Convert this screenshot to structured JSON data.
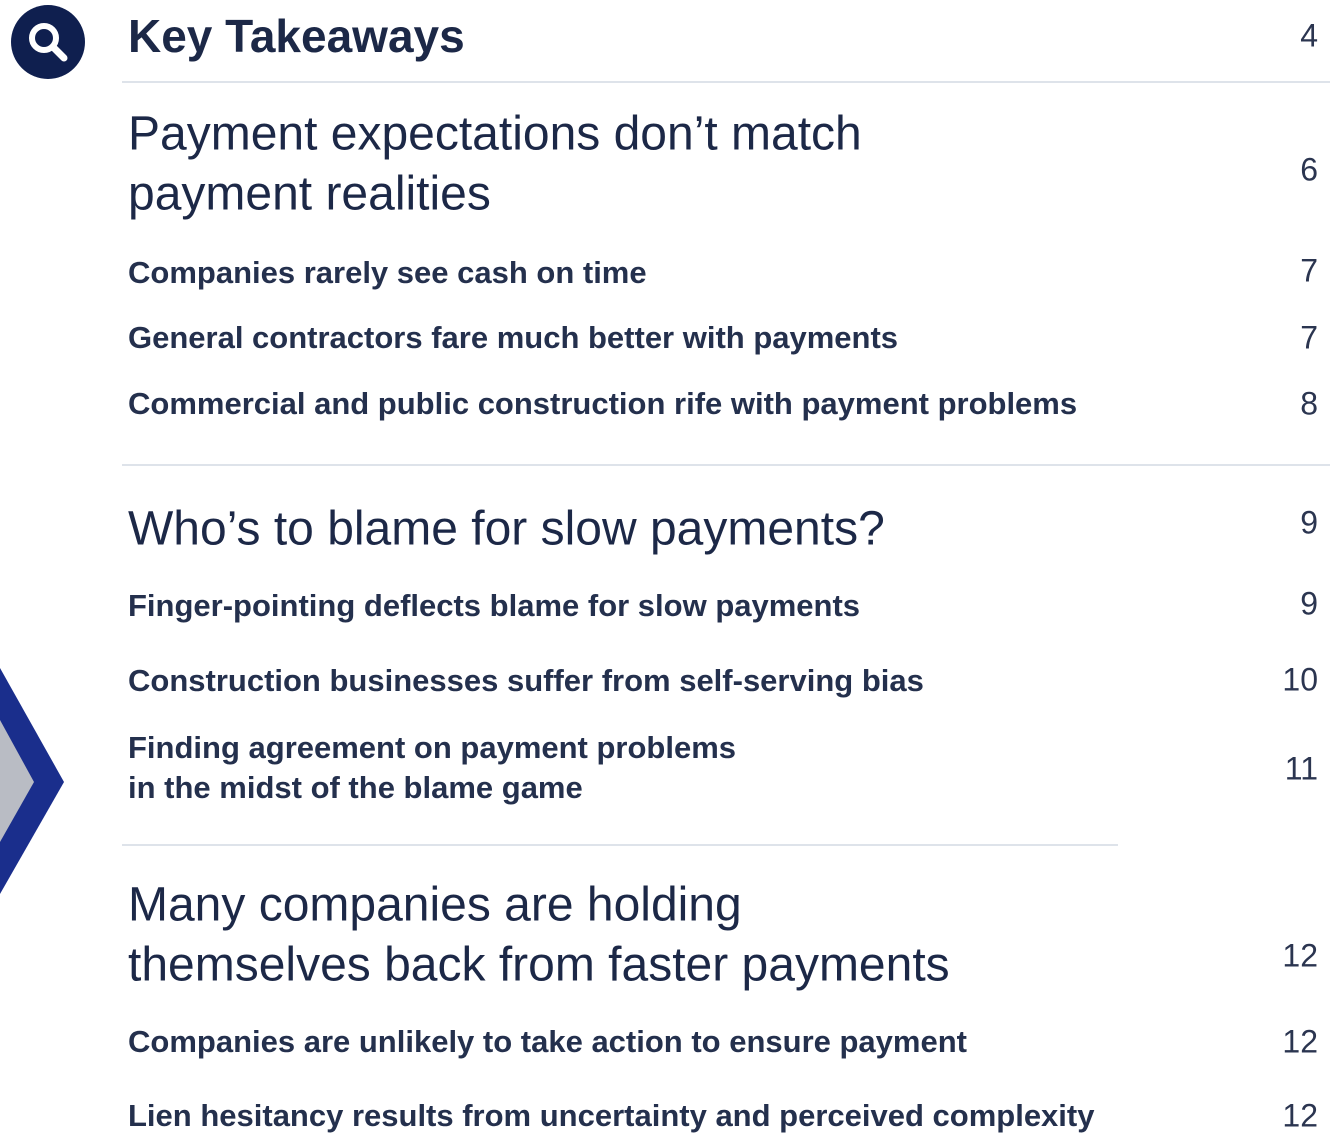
{
  "toc": {
    "sections": [
      {
        "title": [
          "Key Takeaways"
        ],
        "page": "4",
        "items": []
      },
      {
        "title": [
          "Payment expectations don’t match",
          "payment realities"
        ],
        "page": "6",
        "items": [
          {
            "title": [
              "Companies rarely see cash on time"
            ],
            "page": "7"
          },
          {
            "title": [
              "General contractors fare much better with payments"
            ],
            "page": "7"
          },
          {
            "title": [
              "Commercial and public construction rife with payment problems"
            ],
            "page": "8"
          }
        ]
      },
      {
        "title": [
          "Who’s to blame for slow payments?"
        ],
        "page": "9",
        "items": [
          {
            "title": [
              "Finger-pointing deflects blame for slow payments"
            ],
            "page": "9"
          },
          {
            "title": [
              "Construction businesses suffer from self-serving bias"
            ],
            "page": "10"
          },
          {
            "title": [
              "Finding agreement on payment problems",
              "in the midst of the blame game"
            ],
            "page": "11"
          }
        ]
      },
      {
        "title": [
          "Many companies are holding",
          "themselves back from faster payments"
        ],
        "page": "12",
        "items": [
          {
            "title": [
              "Companies are unlikely to take action to ensure payment"
            ],
            "page": "12"
          },
          {
            "title": [
              "Lien hesitancy results from uncertainty and perceived complexity"
            ],
            "page": "12"
          }
        ]
      }
    ]
  }
}
